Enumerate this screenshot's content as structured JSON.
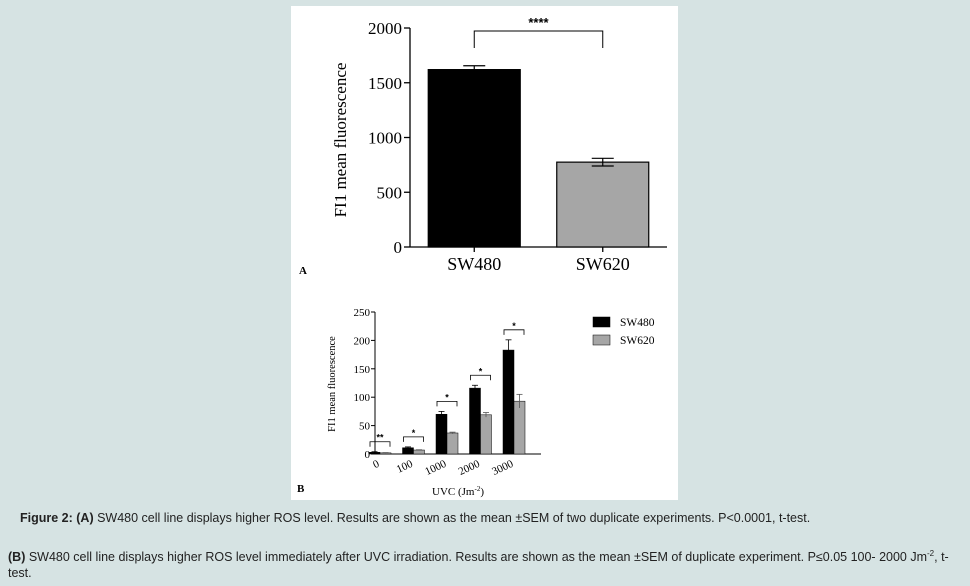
{
  "chart_data": [
    {
      "panel": "A",
      "type": "bar",
      "categories": [
        "SW480",
        "SW620"
      ],
      "values": [
        1620,
        775
      ],
      "errors": [
        35,
        35
      ],
      "colors": [
        "#000000",
        "#a6a6a6"
      ],
      "ylabel": "FI1 mean fluorescence",
      "xlabel": "",
      "ylim": [
        0,
        2000
      ],
      "yticks": [
        "0",
        "500",
        "1000",
        "1500",
        "2000"
      ],
      "significance": "****",
      "legend": "none",
      "grid": false
    },
    {
      "panel": "B",
      "type": "bar",
      "categories": [
        "0",
        "100",
        "1000",
        "2000",
        "3000"
      ],
      "series": [
        {
          "name": "SW480",
          "color": "#000000",
          "values": [
            3,
            11,
            70,
            116,
            183
          ],
          "errors": [
            1,
            1.5,
            5,
            5,
            18
          ]
        },
        {
          "name": "SW620",
          "color": "#a6a6a6",
          "values": [
            2,
            7,
            37,
            69,
            93
          ],
          "errors": [
            0.5,
            0.5,
            1.5,
            4,
            12
          ]
        }
      ],
      "ylabel": "FI1 mean fluorescence",
      "xlabel_main": "UVC (Jm",
      "xlabel_sup": "-2",
      "xlabel_end": ")",
      "ylim": [
        0,
        250
      ],
      "yticks": [
        "0",
        "50",
        "100",
        "150",
        "200",
        "250"
      ],
      "significance": [
        "**",
        "*",
        "*",
        "*",
        "*"
      ],
      "legend": "top-right",
      "grid": false
    }
  ],
  "caption": {
    "a_label": "Figure 2: (A)",
    "a_text": "SW480 cell line displays higher ROS level. Results are shown as the mean ±SEM of two duplicate experiments. P<0.0001, t-test.",
    "b_label": "(B)",
    "b_text_1": "SW480 cell line displays higher ROS level immediately after UVC irradiation. Results are shown as the mean ±SEM of duplicate experiment.  P≤0.05 100-  2000 Jm",
    "b_sup": "-2",
    "b_text_2": ", t-test."
  }
}
